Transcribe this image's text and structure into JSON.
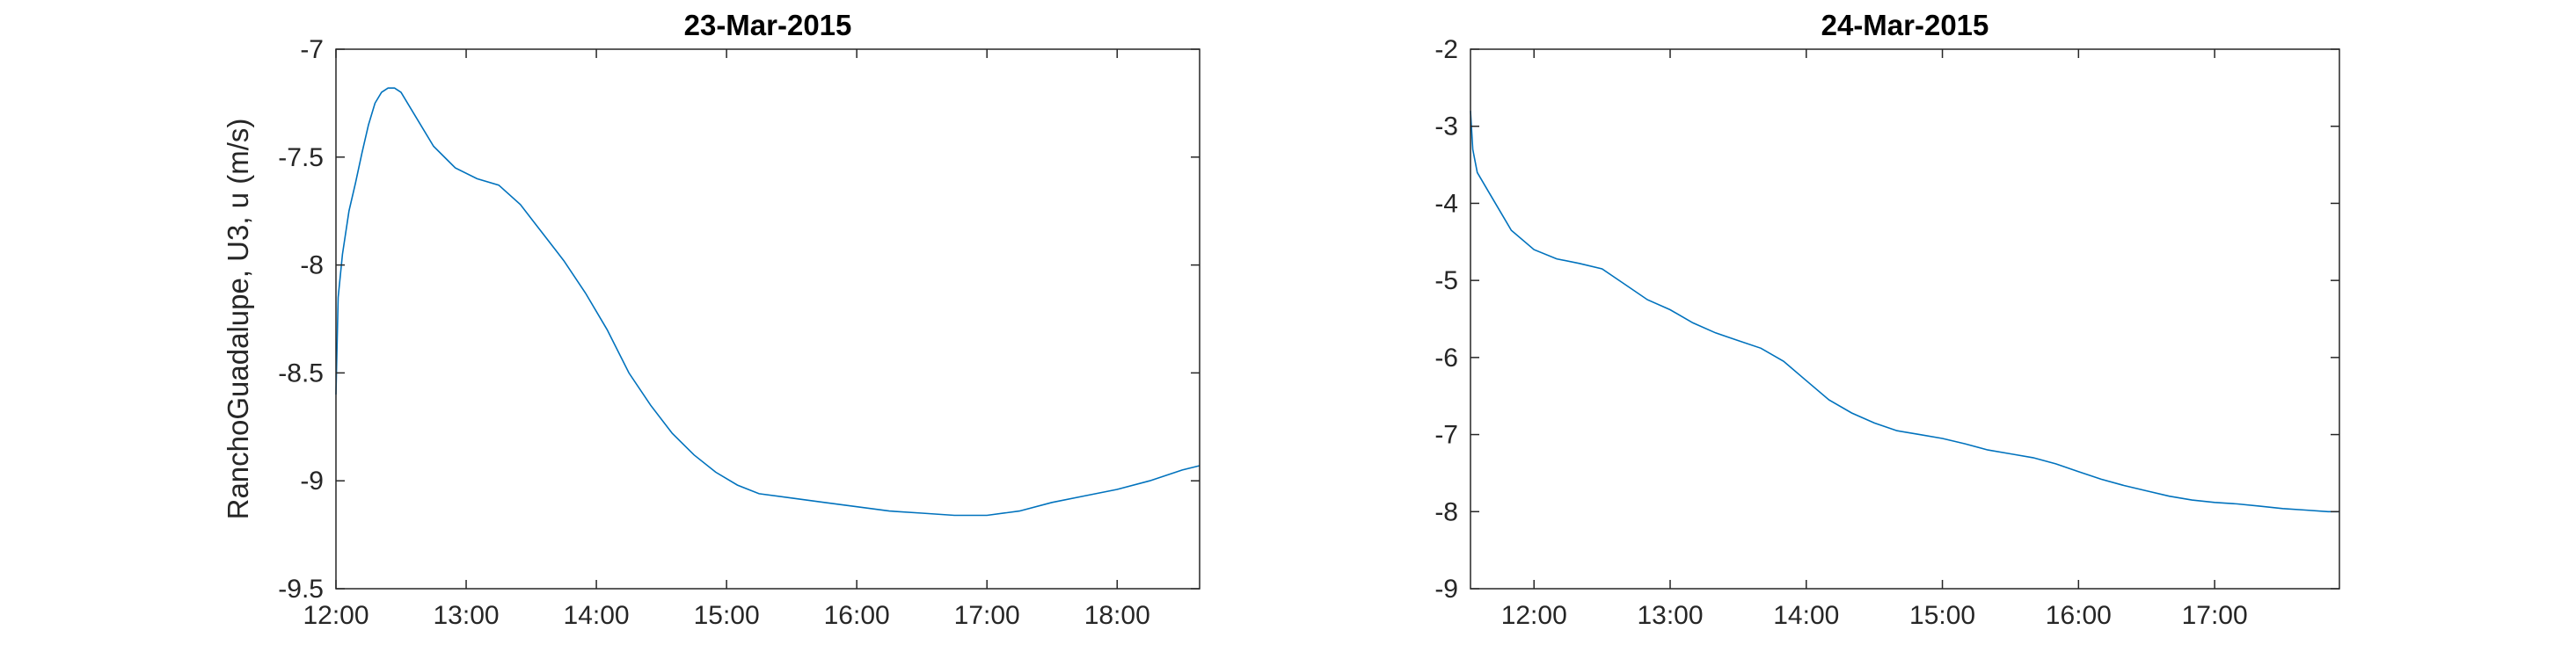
{
  "chart_data": [
    {
      "type": "line",
      "title": "23-Mar-2015",
      "xlabel": "",
      "ylabel": "RanchoGuadalupe, U3, u (m/s)",
      "xlim": [
        "12:00",
        "18:38"
      ],
      "ylim": [
        -9.5,
        -7
      ],
      "xticks": [
        "12:00",
        "13:00",
        "14:00",
        "15:00",
        "16:00",
        "17:00",
        "18:00"
      ],
      "yticks": [
        "-9.5",
        "-9",
        "-8.5",
        "-8",
        "-7.5",
        "-7"
      ],
      "grid": false,
      "line_color": "#0072bd",
      "series": [
        {
          "x": [
            "12:00",
            "12:01",
            "12:03",
            "12:06",
            "12:09",
            "12:12",
            "12:15",
            "12:18",
            "12:21",
            "12:24",
            "12:27",
            "12:30",
            "12:36",
            "12:45",
            "12:55",
            "13:05",
            "13:15",
            "13:25",
            "13:35",
            "13:45",
            "13:55",
            "14:05",
            "14:15",
            "14:25",
            "14:35",
            "14:45",
            "14:55",
            "15:05",
            "15:15",
            "15:30",
            "15:45",
            "16:00",
            "16:15",
            "16:30",
            "16:45",
            "17:00",
            "17:15",
            "17:30",
            "17:45",
            "18:00",
            "18:15",
            "18:30",
            "18:38"
          ],
          "y": [
            -8.6,
            -8.15,
            -7.95,
            -7.75,
            -7.62,
            -7.48,
            -7.35,
            -7.25,
            -7.2,
            -7.18,
            -7.18,
            -7.2,
            -7.3,
            -7.45,
            -7.55,
            -7.6,
            -7.63,
            -7.72,
            -7.85,
            -7.98,
            -8.13,
            -8.3,
            -8.5,
            -8.65,
            -8.78,
            -8.88,
            -8.96,
            -9.02,
            -9.06,
            -9.08,
            -9.1,
            -9.12,
            -9.14,
            -9.15,
            -9.16,
            -9.16,
            -9.14,
            -9.1,
            -9.07,
            -9.04,
            -9.0,
            -8.95,
            -8.93
          ]
        }
      ]
    },
    {
      "type": "line",
      "title": "24-Mar-2015",
      "xlabel": "",
      "ylabel": "",
      "xlim": [
        "11:32",
        "17:55"
      ],
      "ylim": [
        -9,
        -2
      ],
      "xticks": [
        "12:00",
        "13:00",
        "14:00",
        "15:00",
        "16:00",
        "17:00"
      ],
      "yticks": [
        "-9",
        "-8",
        "-7",
        "-6",
        "-5",
        "-4",
        "-3",
        "-2"
      ],
      "grid": false,
      "line_color": "#0072bd",
      "series": [
        {
          "x": [
            "11:32",
            "11:33",
            "11:35",
            "11:40",
            "11:45",
            "11:50",
            "12:00",
            "12:10",
            "12:20",
            "12:30",
            "12:40",
            "12:50",
            "13:00",
            "13:10",
            "13:20",
            "13:30",
            "13:40",
            "13:50",
            "14:00",
            "14:10",
            "14:20",
            "14:30",
            "14:40",
            "14:50",
            "15:00",
            "15:10",
            "15:20",
            "15:30",
            "15:40",
            "15:50",
            "16:00",
            "16:10",
            "16:20",
            "16:30",
            "16:40",
            "16:50",
            "17:00",
            "17:10",
            "17:20",
            "17:30",
            "17:40",
            "17:50",
            "17:55"
          ],
          "y": [
            -2.8,
            -3.3,
            -3.6,
            -3.85,
            -4.1,
            -4.35,
            -4.6,
            -4.72,
            -4.78,
            -4.85,
            -5.05,
            -5.25,
            -5.38,
            -5.55,
            -5.68,
            -5.78,
            -5.88,
            -6.05,
            -6.3,
            -6.55,
            -6.72,
            -6.85,
            -6.95,
            -7.0,
            -7.05,
            -7.12,
            -7.2,
            -7.25,
            -7.3,
            -7.38,
            -7.48,
            -7.58,
            -7.66,
            -7.73,
            -7.8,
            -7.85,
            -7.88,
            -7.9,
            -7.93,
            -7.96,
            -7.98,
            -8.0,
            -8.0
          ]
        }
      ]
    }
  ]
}
